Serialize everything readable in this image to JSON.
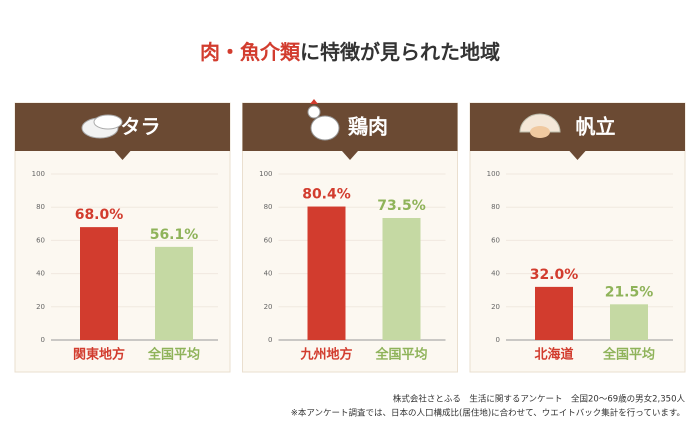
{
  "title_highlight": "肉・魚介類",
  "title_rest": "に特徴が見られた地域",
  "chart_data": [
    {
      "type": "bar",
      "title": "タラ",
      "categories": [
        "関東地方",
        "全国平均"
      ],
      "values": [
        68.0,
        56.1
      ],
      "value_labels": [
        "68.0%",
        "56.1%"
      ],
      "colors": [
        "#d23c2e",
        "#c5d9a3"
      ],
      "label_colors": [
        "#d23c2e",
        "#8fb35a"
      ],
      "ylim": [
        0,
        100
      ],
      "yticks": [
        0,
        20,
        40,
        60,
        80,
        100
      ],
      "grid": true
    },
    {
      "type": "bar",
      "title": "鶏肉",
      "categories": [
        "九州地方",
        "全国平均"
      ],
      "values": [
        80.4,
        73.5
      ],
      "value_labels": [
        "80.4%",
        "73.5%"
      ],
      "colors": [
        "#d23c2e",
        "#c5d9a3"
      ],
      "label_colors": [
        "#d23c2e",
        "#8fb35a"
      ],
      "ylim": [
        0,
        100
      ],
      "yticks": [
        0,
        20,
        40,
        60,
        80,
        100
      ],
      "grid": true
    },
    {
      "type": "bar",
      "title": "帆立",
      "categories": [
        "北海道",
        "全国平均"
      ],
      "values": [
        32.0,
        21.5
      ],
      "value_labels": [
        "32.0%",
        "21.5%"
      ],
      "colors": [
        "#d23c2e",
        "#c5d9a3"
      ],
      "label_colors": [
        "#d23c2e",
        "#8fb35a"
      ],
      "ylim": [
        0,
        100
      ],
      "yticks": [
        0,
        20,
        40,
        60,
        80,
        100
      ],
      "grid": true
    }
  ],
  "footnotes": [
    "株式会社さとふる　生活に関するアンケート　全国20～69歳の男女2,350人",
    "※本アンケート調査では、日本の人口構成比(居住地)に合わせて、ウエイトバック集計を行っています。"
  ]
}
